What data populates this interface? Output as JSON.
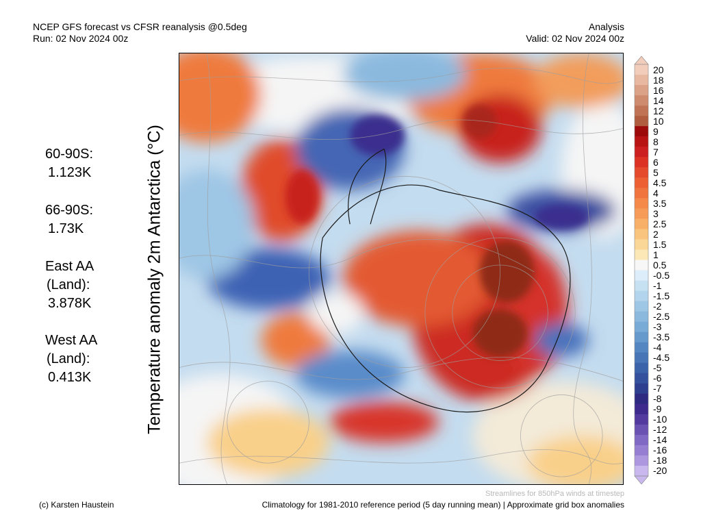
{
  "header": {
    "title": "NCEP GFS forecast vs CFSR reanalysis @0.5deg",
    "run": "Run: 02 Nov 2024 00z",
    "type": "Analysis",
    "valid": "Valid: 02 Nov 2024 00z"
  },
  "axis_title": "Temperature anomaly 2m Antarctica (°C)",
  "stats": [
    {
      "lines": [
        "60-90S:",
        "1.123K"
      ]
    },
    {
      "lines": [
        "66-90S:",
        "1.73K"
      ]
    },
    {
      "lines": [
        "East AA",
        "(Land):",
        "3.878K"
      ]
    },
    {
      "lines": [
        "West AA",
        "(Land):",
        "0.413K"
      ]
    }
  ],
  "colorbar": {
    "labels": [
      "20",
      "18",
      "16",
      "14",
      "12",
      "10",
      "9",
      "8",
      "7",
      "6",
      "5",
      "4.5",
      "4",
      "3.5",
      "3",
      "2.5",
      "2",
      "1.5",
      "1",
      "0.5",
      "-0.5",
      "-1",
      "-1.5",
      "-2",
      "-2.5",
      "-3",
      "-3.5",
      "-4",
      "-4.5",
      "-5",
      "-6",
      "-7",
      "-8",
      "-9",
      "-10",
      "-12",
      "-14",
      "-16",
      "-18",
      "-20"
    ],
    "colors": [
      "#f3cdbc",
      "#e8b8a0",
      "#dca287",
      "#cf8b6e",
      "#c17356",
      "#b05c3f",
      "#9c0a0a",
      "#b81414",
      "#cc2020",
      "#dc3224",
      "#e64a2c",
      "#ec6034",
      "#f0743e",
      "#f4894a",
      "#f69c58",
      "#f8b068",
      "#f9c47e",
      "#fad796",
      "#fbe8b6",
      "#f7f7f7",
      "#ddeefa",
      "#c6e1f2",
      "#b2d4ec",
      "#9ec6e5",
      "#8bb9de",
      "#78abd6",
      "#6699cc",
      "#5487c2",
      "#4775b6",
      "#3b63aa",
      "#33519c",
      "#2d3f8e",
      "#2e2a82",
      "#3d2a8c",
      "#523a9e",
      "#6a52b2",
      "#8069c4",
      "#967fd2",
      "#ad98e0",
      "#c9b8ee"
    ]
  },
  "map_colors": {
    "ocean_base": "#b9d4ea",
    "neutral": "#f5f5f5",
    "warm_light": "#f9d08a",
    "warm": "#ef7a3c",
    "hot": "#c8221e",
    "very_hot": "#8e2b18",
    "cool": "#7fb0dc",
    "cold": "#3d62b4",
    "very_cold": "#3a2f8e",
    "streamline": "#9e9e9e",
    "coastline": "#1a1a1a"
  },
  "footer": {
    "note": "Streamlines for 850hPa winds at timestep",
    "credit": "(c) Karsten Haustein",
    "climatology": "Climatology for 1981-2010 reference period (5 day running mean) | Approximate grid box anomalies"
  }
}
